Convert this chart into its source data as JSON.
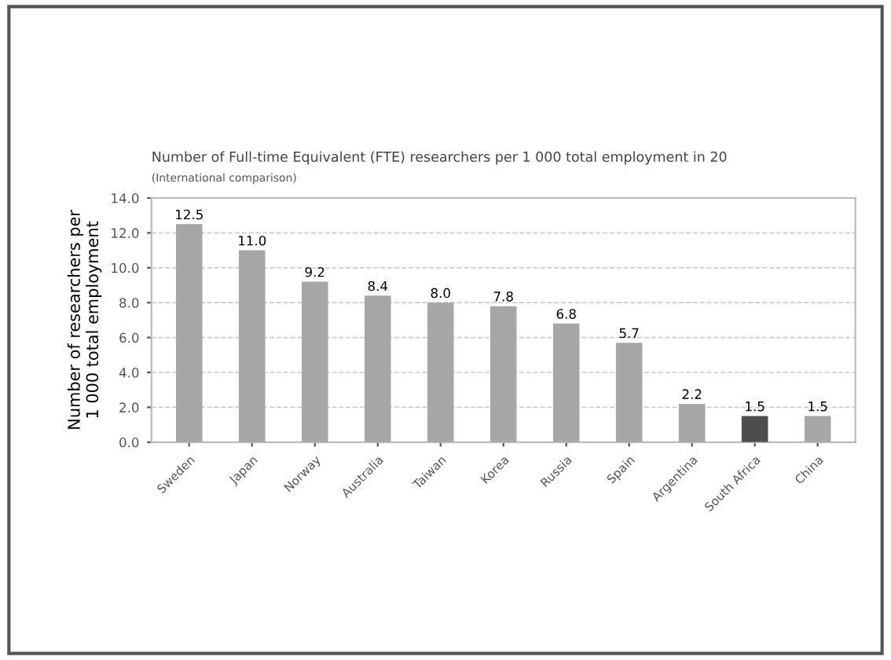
{
  "chart_data": {
    "type": "bar",
    "title": "Number of Full-time Equivalent (FTE) researchers per 1 000 total employment in 20",
    "subtitle": "(International comparison)",
    "ylabel": "Number of researchers per\n1 000 total employment",
    "categories": [
      "Sweden",
      "Japan",
      "Norway",
      "Australia",
      "Taiwan",
      "Korea",
      "Russia",
      "Spain",
      "Argentina",
      "South Africa",
      "China"
    ],
    "values": [
      12.5,
      11.0,
      9.2,
      8.4,
      8.0,
      7.8,
      6.8,
      5.7,
      2.2,
      1.5,
      1.5
    ],
    "colors": [
      "#a6a6a6",
      "#a6a6a6",
      "#a6a6a6",
      "#a6a6a6",
      "#a6a6a6",
      "#a6a6a6",
      "#a6a6a6",
      "#a6a6a6",
      "#a6a6a6",
      "#4d4d4d",
      "#a6a6a6"
    ],
    "value_labels": [
      "12.5",
      "11.0",
      "9.2",
      "8.4",
      "8.0",
      "7.8",
      "6.8",
      "5.7",
      "2.2",
      "1.5",
      "1.5"
    ],
    "ylim": [
      0,
      14
    ],
    "yticks": [
      {
        "value": 0,
        "label": "0.0"
      },
      {
        "value": 2,
        "label": "2.0"
      },
      {
        "value": 4,
        "label": "4.0"
      },
      {
        "value": 6,
        "label": "6.0"
      },
      {
        "value": 8,
        "label": "8.0"
      },
      {
        "value": 10,
        "label": "10.0"
      },
      {
        "value": 12,
        "label": "12.0"
      },
      {
        "value": 14,
        "label": "14.0"
      }
    ],
    "grid": "y"
  }
}
